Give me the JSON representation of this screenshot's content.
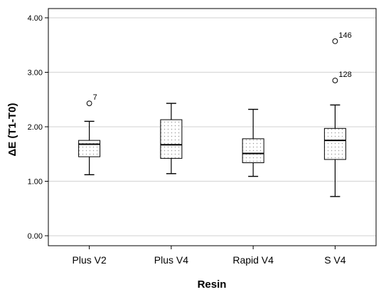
{
  "chart_data": {
    "type": "boxplot",
    "title": "",
    "xlabel": "Resin",
    "ylabel": "ΔE (T1-T0)",
    "ylim": [
      -0.2,
      4.2
    ],
    "yticks": [
      "0.00",
      "1.00",
      "2.00",
      "3.00",
      "4.00"
    ],
    "ytick_values": [
      0,
      1,
      2,
      3,
      4
    ],
    "grid": "horizontal",
    "categories": [
      "Plus V2",
      "Plus V4",
      "Rapid V4",
      "S V4"
    ],
    "boxes": [
      {
        "category": "Plus V2",
        "whisker_low": 1.12,
        "q1": 1.45,
        "median": 1.68,
        "q3": 1.75,
        "whisker_high": 2.1,
        "outliers": [
          {
            "value": 2.43,
            "label": "7"
          }
        ]
      },
      {
        "category": "Plus V4",
        "whisker_low": 1.14,
        "q1": 1.42,
        "median": 1.67,
        "q3": 2.13,
        "whisker_high": 2.43,
        "outliers": []
      },
      {
        "category": "Rapid V4",
        "whisker_low": 1.09,
        "q1": 1.34,
        "median": 1.51,
        "q3": 1.78,
        "whisker_high": 2.32,
        "outliers": []
      },
      {
        "category": "S V4",
        "whisker_low": 0.72,
        "q1": 1.4,
        "median": 1.75,
        "q3": 1.97,
        "whisker_high": 2.4,
        "outliers": [
          {
            "value": 2.85,
            "label": "128"
          },
          {
            "value": 3.57,
            "label": "146"
          }
        ]
      }
    ],
    "colors": {
      "box_fill": "#ffffff",
      "dots": "#9a9a9a",
      "gridline": "#d9d9d9",
      "stroke": "#000000"
    }
  }
}
